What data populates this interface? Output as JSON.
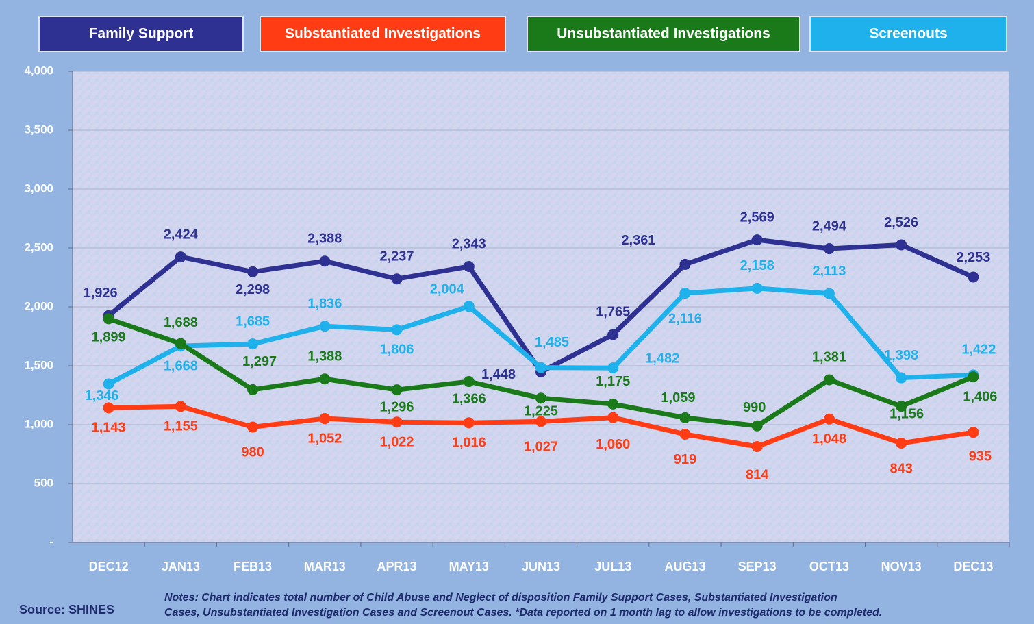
{
  "chart_data": {
    "type": "line",
    "categories": [
      "DEC12",
      "JAN13",
      "FEB13",
      "MAR13",
      "APR13",
      "MAY13",
      "JUN13",
      "JUL13",
      "AUG13",
      "SEP13",
      "OCT13",
      "NOV13",
      "DEC13"
    ],
    "series": [
      {
        "name": "Family Support",
        "color": "#2e3192",
        "values": [
          1926,
          2424,
          2298,
          2388,
          2237,
          2343,
          1448,
          1765,
          2361,
          2569,
          2494,
          2526,
          2253
        ],
        "value_labels": [
          "1,926",
          "2,424",
          "2,298",
          "2,388",
          "2,237",
          "2,343",
          "1,448",
          "1,765",
          "2,361",
          "2,569",
          "2,494",
          "2,526",
          "2,253"
        ]
      },
      {
        "name": "Substantiated Investigations",
        "color": "#ff3c14",
        "values": [
          1143,
          1155,
          980,
          1052,
          1022,
          1016,
          1027,
          1060,
          919,
          814,
          1048,
          843,
          935
        ],
        "value_labels": [
          "1,143",
          "1,155",
          "980",
          "1,052",
          "1,022",
          "1,016",
          "1,027",
          "1,060",
          "919",
          "814",
          "1,048",
          "843",
          "935"
        ]
      },
      {
        "name": "Unsubstantiated Investigations",
        "color": "#1a7a1a",
        "values": [
          1899,
          1688,
          1297,
          1388,
          1296,
          1366,
          1225,
          1175,
          1059,
          990,
          1381,
          1156,
          1406
        ],
        "value_labels": [
          "1,899",
          "1,688",
          "1,297",
          "1,388",
          "1,296",
          "1,366",
          "1,225",
          "1,175",
          "1,059",
          "990",
          "1,381",
          "1,156",
          "1,406"
        ]
      },
      {
        "name": "Screenouts",
        "color": "#1eb1ec",
        "values": [
          1346,
          1668,
          1685,
          1836,
          1806,
          2004,
          1485,
          1482,
          2116,
          2158,
          2113,
          1398,
          1422
        ],
        "value_labels": [
          "1,346",
          "1,668",
          "1,685",
          "1,836",
          "1,806",
          "2,004",
          "1,485",
          "1,482",
          "2,116",
          "2,158",
          "2,113",
          "1,398",
          "1,422"
        ]
      }
    ],
    "ylim": [
      0,
      4000
    ],
    "yticks": [
      {
        "value": 0,
        "label": "-"
      },
      500,
      {
        "value": 1000,
        "label": "1,000"
      },
      {
        "value": 1500,
        "label": "1,500"
      },
      {
        "value": 2000,
        "label": "2,000"
      },
      {
        "value": 2500,
        "label": "2,500"
      },
      {
        "value": 3000,
        "label": "3,000"
      },
      {
        "value": 3500,
        "label": "3,500"
      },
      {
        "value": 4000,
        "label": "4,000"
      }
    ],
    "grid": true,
    "legend": "top",
    "notes": [
      "Notes: Chart indicates total number of Child Abuse and Neglect of disposition  Family Support Cases, Substantiated Investigation",
      "Cases, Unsubstantiated  Investigation Cases and Screenout Cases.  *Data reported on 1 month lag to allow investigations to be completed."
    ],
    "source": "Source: SHINES"
  }
}
